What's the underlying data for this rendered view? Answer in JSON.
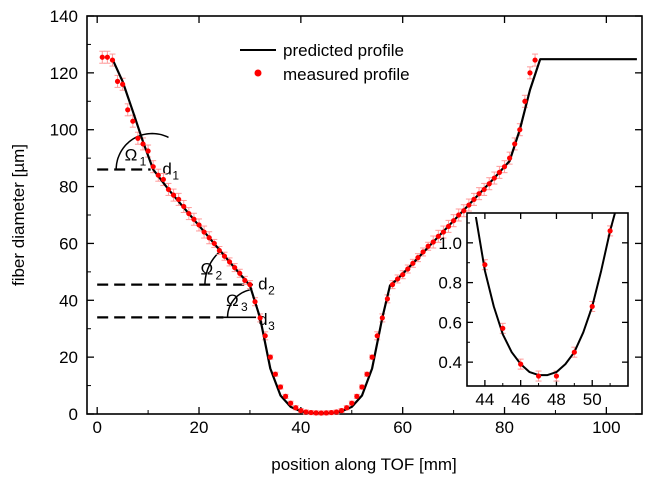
{
  "chart_data": [
    {
      "type": "line",
      "xlabel": "position along TOF [mm]",
      "ylabel": "fiber diameter [µm]",
      "xlim": [
        -2,
        107
      ],
      "ylim": [
        0,
        140
      ],
      "xticks": [
        0,
        20,
        40,
        60,
        80,
        100
      ],
      "yticks": [
        0,
        20,
        40,
        60,
        80,
        100,
        120,
        140
      ],
      "legend_position": "top-right",
      "series": [
        {
          "name": "predicted profile",
          "kind": "line",
          "color": "#000000",
          "x": [
            3,
            5,
            7,
            9,
            11,
            14,
            18,
            22,
            26,
            30,
            32,
            34,
            36,
            38,
            40,
            42,
            44,
            46,
            48,
            50,
            52,
            54,
            56,
            57.5,
            59,
            62,
            66,
            70,
            74,
            78,
            81,
            83,
            85,
            87,
            95,
            106
          ],
          "y": [
            124.8,
            117,
            106.5,
            95.8,
            86,
            79,
            70.5,
            62,
            53.5,
            45.2,
            33.8,
            16,
            6.5,
            2.5,
            0.9,
            0.35,
            0.32,
            0.35,
            0.9,
            2.5,
            6.5,
            16,
            33.8,
            45.2,
            47.5,
            53,
            60.5,
            68,
            75.5,
            83,
            89,
            100,
            114,
            124.8,
            124.8,
            124.8
          ]
        },
        {
          "name": "measured profile",
          "kind": "scatter",
          "color": "#ff0000",
          "x": [
            1,
            2,
            3,
            4,
            5,
            6,
            7,
            8,
            9,
            10,
            11,
            12,
            13,
            14,
            15,
            16,
            17,
            18,
            19,
            20,
            21,
            22,
            23,
            24,
            25,
            26,
            27,
            28,
            29,
            30,
            31,
            32,
            33,
            34,
            35,
            36,
            37,
            38,
            39,
            40,
            41,
            42,
            43,
            44,
            45,
            46,
            47,
            48,
            49,
            50,
            51,
            52,
            53,
            54,
            55,
            56,
            57,
            58,
            59,
            60,
            61,
            62,
            63,
            64,
            65,
            66,
            67,
            68,
            69,
            70,
            71,
            72,
            73,
            74,
            75,
            76,
            77,
            78,
            79,
            80,
            81,
            82,
            83,
            84,
            85,
            86
          ],
          "y": [
            125.5,
            125.5,
            124.5,
            117,
            116,
            107,
            103,
            97,
            95,
            92.5,
            87,
            84,
            82.5,
            79,
            77,
            75.5,
            73,
            70.5,
            68.5,
            66.5,
            64,
            62,
            60,
            57.5,
            55.5,
            53.5,
            51.5,
            49.5,
            47,
            45.5,
            39.5,
            33.8,
            27.5,
            20,
            14,
            9.5,
            6.2,
            3.8,
            2.2,
            1.2,
            0.7,
            0.5,
            0.4,
            0.35,
            0.4,
            0.5,
            0.7,
            1.2,
            2.2,
            3.8,
            6.2,
            9.5,
            14,
            20,
            27.5,
            33.8,
            40.5,
            45.5,
            47.5,
            49,
            51,
            53,
            55,
            57,
            59,
            60.5,
            62.5,
            64,
            66,
            68,
            70,
            71.5,
            73.5,
            75.5,
            77.5,
            79,
            81,
            83,
            85,
            87,
            90,
            95,
            100,
            110,
            120,
            124.5
          ]
        }
      ],
      "annotations": [
        {
          "text": "d",
          "sub": "1",
          "y": 86
        },
        {
          "text": "d",
          "sub": "2",
          "y": 45.5
        },
        {
          "text": "d",
          "sub": "3",
          "y": 34
        },
        {
          "text": "Ω",
          "sub": "1"
        },
        {
          "text": "Ω",
          "sub": "2"
        },
        {
          "text": "Ω",
          "sub": "3"
        }
      ]
    },
    {
      "type": "line",
      "inset": true,
      "xlim": [
        43,
        52
      ],
      "ylim": [
        0.28,
        1.15
      ],
      "xticks": [
        44,
        46,
        48,
        50
      ],
      "yticks": [
        0.4,
        0.6,
        0.8,
        1.0
      ],
      "ytick_labels": [
        "0.4",
        "0.6",
        "0.8",
        "1.0"
      ],
      "series": [
        {
          "name": "predicted profile",
          "kind": "line",
          "color": "#000000",
          "x": [
            43.5,
            44,
            44.5,
            45,
            45.5,
            46,
            46.5,
            47,
            47.5,
            48,
            48.5,
            49,
            49.5,
            50,
            50.5,
            51,
            51.3
          ],
          "y": [
            1.13,
            0.86,
            0.68,
            0.54,
            0.45,
            0.39,
            0.35,
            0.335,
            0.335,
            0.35,
            0.39,
            0.45,
            0.55,
            0.68,
            0.86,
            1.06,
            1.16
          ]
        },
        {
          "name": "measured profile",
          "kind": "scatter",
          "color": "#ff0000",
          "x": [
            44,
            45,
            46,
            47,
            48,
            49,
            50,
            51
          ],
          "y": [
            0.89,
            0.57,
            0.39,
            0.33,
            0.33,
            0.45,
            0.68,
            1.06
          ]
        }
      ]
    }
  ]
}
